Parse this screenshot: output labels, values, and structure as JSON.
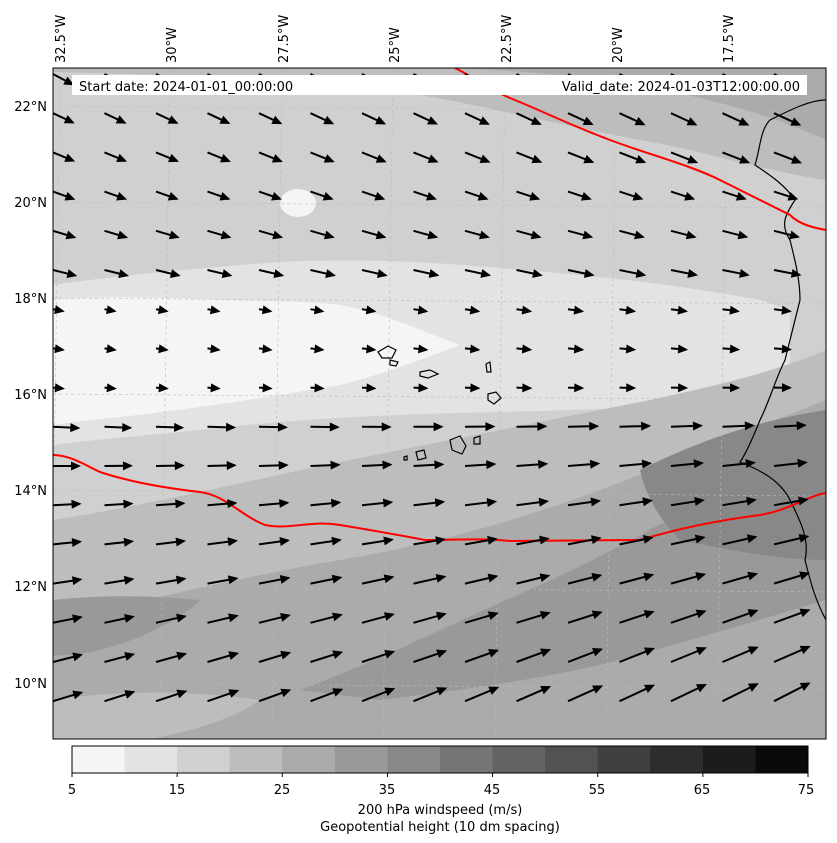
{
  "map": {
    "header": {
      "start_date": "Start date: 2024-01-01_00:00:00",
      "valid_date": "Valid_date: 2024-01-03T12:00:00.00"
    },
    "longitude_labels": [
      "32.5°W",
      "30°W",
      "27.5°W",
      "25°W",
      "22.5°W",
      "20°W",
      "17.5°W"
    ],
    "latitude_labels": [
      "22°N",
      "20°N",
      "18°N",
      "16°N",
      "14°N",
      "12°N",
      "10°N"
    ],
    "colorbar": {
      "tick_labels": [
        "5",
        "15",
        "25",
        "35",
        "45",
        "55",
        "65",
        "75"
      ],
      "colors": [
        "#f5f5f5",
        "#e3e3e3",
        "#d0d0d0",
        "#bdbdbd",
        "#ababab",
        "#999999",
        "#888888",
        "#757575",
        "#636363",
        "#525252",
        "#3f3f3f",
        "#2d2d2d",
        "#1c1c1c",
        "#0a0a0a"
      ],
      "label": "200 hPa windspeed (m/s)",
      "sublabel": "Geopotential height (10 dm spacing)",
      "sublabel_color": "#ff0000"
    },
    "contour_color": "#ff0000"
  }
}
